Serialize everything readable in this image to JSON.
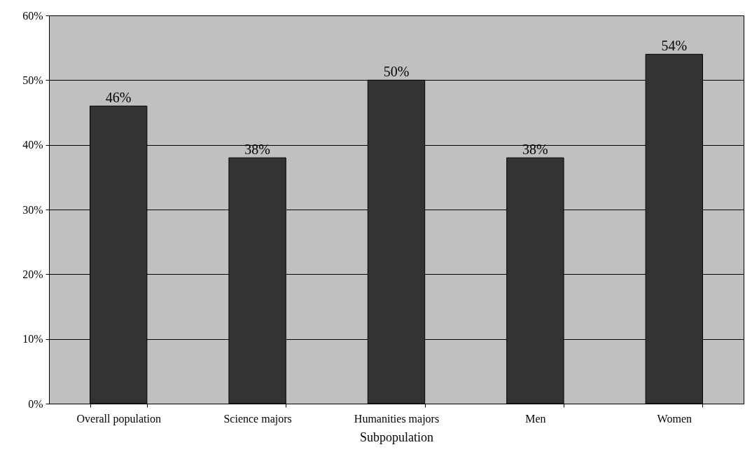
{
  "chart_data": {
    "type": "bar",
    "xlabel": "Subpopulation",
    "categories": [
      "Overall population",
      "Science majors",
      "Humanities majors",
      "Men",
      "Women"
    ],
    "values": [
      46,
      38,
      50,
      38,
      54
    ],
    "value_labels": [
      "46%",
      "38%",
      "50%",
      "38%",
      "54%"
    ],
    "color": "#333333",
    "ylim": [
      0,
      60
    ],
    "yticks": [
      {
        "value": 0,
        "label": "0%"
      },
      {
        "value": 10,
        "label": "10%"
      },
      {
        "value": 20,
        "label": "20%"
      },
      {
        "value": 30,
        "label": "30%"
      },
      {
        "value": 40,
        "label": "40%"
      },
      {
        "value": 50,
        "label": "50%"
      },
      {
        "value": 60,
        "label": "60%"
      }
    ],
    "grid": "y"
  }
}
